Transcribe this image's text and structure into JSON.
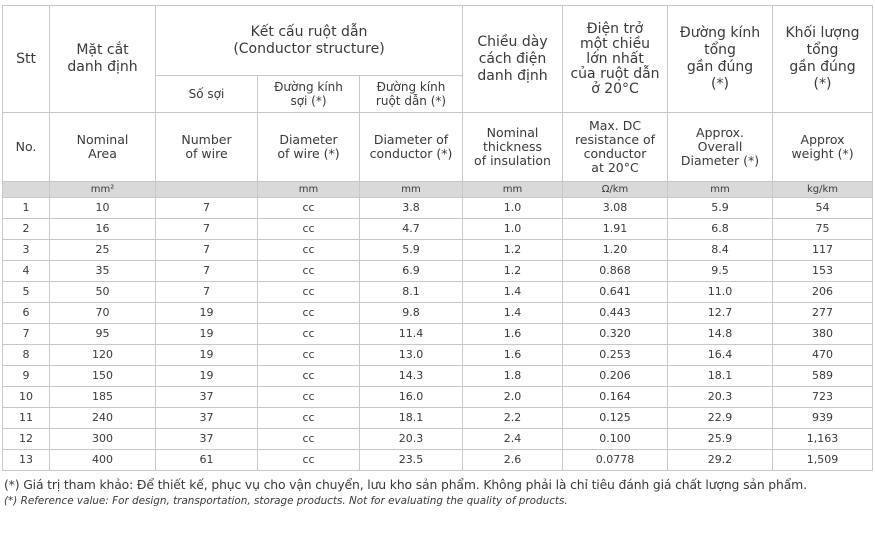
{
  "table": {
    "header_vi": {
      "stt": "Stt",
      "area": [
        "Mặt cắt",
        "danh định"
      ],
      "conductor": [
        "Kết cấu ruột dẫn",
        "(Conductor structure)"
      ],
      "wires": "Số sợi",
      "wire_dia": [
        "Đường kính",
        "sợi (*)"
      ],
      "cond_dia": [
        "Đường kính",
        "ruột dẫn (*)"
      ],
      "insulation": [
        "Chiều dày",
        "cách điện",
        "danh định"
      ],
      "resistance": [
        "Điện trở",
        "một chiều",
        "lớn nhất",
        "của ruột dẫn",
        "ở 20°C"
      ],
      "overall": [
        "Đường kính",
        "tổng",
        "gần đúng",
        "(*)"
      ],
      "weight": [
        "Khối lượng",
        "tổng",
        "gần đúng",
        "(*)"
      ]
    },
    "header_en": [
      [
        "No."
      ],
      [
        "Nominal",
        "Area"
      ],
      [
        "Number",
        "of wire"
      ],
      [
        "Diameter",
        "of wire (*)"
      ],
      [
        "Diameter of",
        "conductor (*)"
      ],
      [
        "Nominal",
        "thickness",
        "of insulation"
      ],
      [
        "Max. DC",
        "resistance of",
        "conductor",
        "at 20°C"
      ],
      [
        "Approx.",
        "Overall",
        "Diameter (*)"
      ],
      [
        "Approx",
        "weight (*)"
      ]
    ],
    "units": {
      "area": "mm²",
      "wire_dia": "mm",
      "cond_dia": "mm",
      "insulation": "mm",
      "resistance": "Ω/km",
      "overall": "mm",
      "weight": "kg/km"
    },
    "rows": [
      [
        "1",
        "10",
        "7",
        "cc",
        "3.8",
        "1.0",
        "3.08",
        "5.9",
        "54"
      ],
      [
        "2",
        "16",
        "7",
        "cc",
        "4.7",
        "1.0",
        "1.91",
        "6.8",
        "75"
      ],
      [
        "3",
        "25",
        "7",
        "cc",
        "5.9",
        "1.2",
        "1.20",
        "8.4",
        "117"
      ],
      [
        "4",
        "35",
        "7",
        "cc",
        "6.9",
        "1.2",
        "0.868",
        "9.5",
        "153"
      ],
      [
        "5",
        "50",
        "7",
        "cc",
        "8.1",
        "1.4",
        "0.641",
        "11.0",
        "206"
      ],
      [
        "6",
        "70",
        "19",
        "cc",
        "9.8",
        "1.4",
        "0.443",
        "12.7",
        "277"
      ],
      [
        "7",
        "95",
        "19",
        "cc",
        "11.4",
        "1.6",
        "0.320",
        "14.8",
        "380"
      ],
      [
        "8",
        "120",
        "19",
        "cc",
        "13.0",
        "1.6",
        "0.253",
        "16.4",
        "470"
      ],
      [
        "9",
        "150",
        "19",
        "cc",
        "14.3",
        "1.8",
        "0.206",
        "18.1",
        "589"
      ],
      [
        "10",
        "185",
        "37",
        "cc",
        "16.0",
        "2.0",
        "0.164",
        "20.3",
        "723"
      ],
      [
        "11",
        "240",
        "37",
        "cc",
        "18.1",
        "2.2",
        "0.125",
        "22.9",
        "939"
      ],
      [
        "12",
        "300",
        "37",
        "cc",
        "20.3",
        "2.4",
        "0.100",
        "25.9",
        "1,163"
      ],
      [
        "13",
        "400",
        "61",
        "cc",
        "23.5",
        "2.6",
        "0.0778",
        "29.2",
        "1,509"
      ]
    ]
  },
  "footnote": {
    "vi": "(*) Giá trị tham khảo: Để thiết kế, phục vụ cho vận chuyển, lưu kho sản phẩm. Không phải là chỉ tiêu đánh giá chất lượng sản phẩm.",
    "en": "(*) Reference value: For design, transportation, storage products. Not for evaluating the quality of products."
  }
}
